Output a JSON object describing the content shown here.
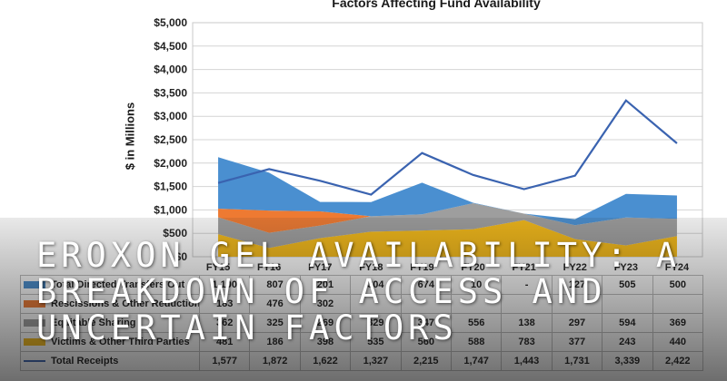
{
  "chart_data": {
    "type": "area",
    "title": "Factors Affecting Fund Availability",
    "ylabel": "$ in Millions",
    "xlabel": "",
    "ylim": [
      0,
      5000
    ],
    "yticks": [
      "$0",
      "$500",
      "$1,000",
      "$1,500",
      "$2,000",
      "$2,500",
      "$3,000",
      "$3,500",
      "$4,000",
      "$4,500",
      "$5,000"
    ],
    "categories": [
      "FY15",
      "FY16",
      "FY17",
      "FY18",
      "FY19",
      "FY20",
      "FY21",
      "FY22",
      "FY23",
      "FY24"
    ],
    "stacked": true,
    "series": [
      {
        "name": "Victims & Other Third Parties",
        "values": [
          481,
          186,
          398,
          535,
          560,
          588,
          783,
          377,
          243,
          440
        ],
        "color": "#f2b818",
        "kind": "area"
      },
      {
        "name": "Equitable Sharing",
        "values": [
          362,
          325,
          269,
          329,
          347,
          556,
          138,
          297,
          594,
          369
        ],
        "color": "#9e9e9e",
        "kind": "area"
      },
      {
        "name": "Rescissions & Other Reductions",
        "values": [
          183,
          476,
          302,
          null,
          null,
          null,
          null,
          null,
          null,
          null
        ],
        "color": "#ee7a32",
        "kind": "area"
      },
      {
        "name": "Total Directed Transfers Out",
        "values": [
          1100,
          807,
          201,
          304,
          674,
          10,
          null,
          127,
          505,
          500
        ],
        "color": "#4a8fd0",
        "kind": "area"
      },
      {
        "name": "Total Receipts",
        "values": [
          1577,
          1872,
          1622,
          1327,
          2215,
          1747,
          1443,
          1731,
          3339,
          2422
        ],
        "color": "#3a63b0",
        "kind": "line"
      }
    ],
    "table": {
      "headers": [
        "",
        "FY15",
        "FY16",
        "FY17",
        "FY18",
        "FY19",
        "FY20",
        "FY21",
        "FY22",
        "FY23",
        "FY24"
      ],
      "rows": [
        {
          "label": "Total Directed Transfers Out",
          "color": "#4a8fd0",
          "cells": [
            "1,100",
            "807",
            "201",
            "304",
            "674",
            "10",
            "-",
            "127",
            "505",
            "500"
          ]
        },
        {
          "label": "Rescissions & Other Reductions",
          "color": "#ee7a32",
          "cells": [
            "183",
            "476",
            "302",
            "",
            "",
            "",
            "",
            "",
            "",
            ""
          ]
        },
        {
          "label": "Equitable Sharing",
          "color": "#9e9e9e",
          "cells": [
            "362",
            "325",
            "269",
            "329",
            "347",
            "556",
            "138",
            "297",
            "594",
            "369"
          ]
        },
        {
          "label": "Victims & Other Third Parties",
          "color": "#f2b818",
          "cells": [
            "481",
            "186",
            "398",
            "535",
            "560",
            "588",
            "783",
            "377",
            "243",
            "440"
          ]
        },
        {
          "label": "Total Receipts",
          "color": "#3a63b0",
          "line": true,
          "cells": [
            "1,577",
            "1,872",
            "1,622",
            "1,327",
            "2,215",
            "1,747",
            "1,443",
            "1,731",
            "3,339",
            "2,422"
          ]
        }
      ]
    },
    "grid": true,
    "legend": "table"
  },
  "overlay": {
    "headline": "Eroxon Gel Availability: A Breakdown of Access and Uncertain Factors"
  }
}
